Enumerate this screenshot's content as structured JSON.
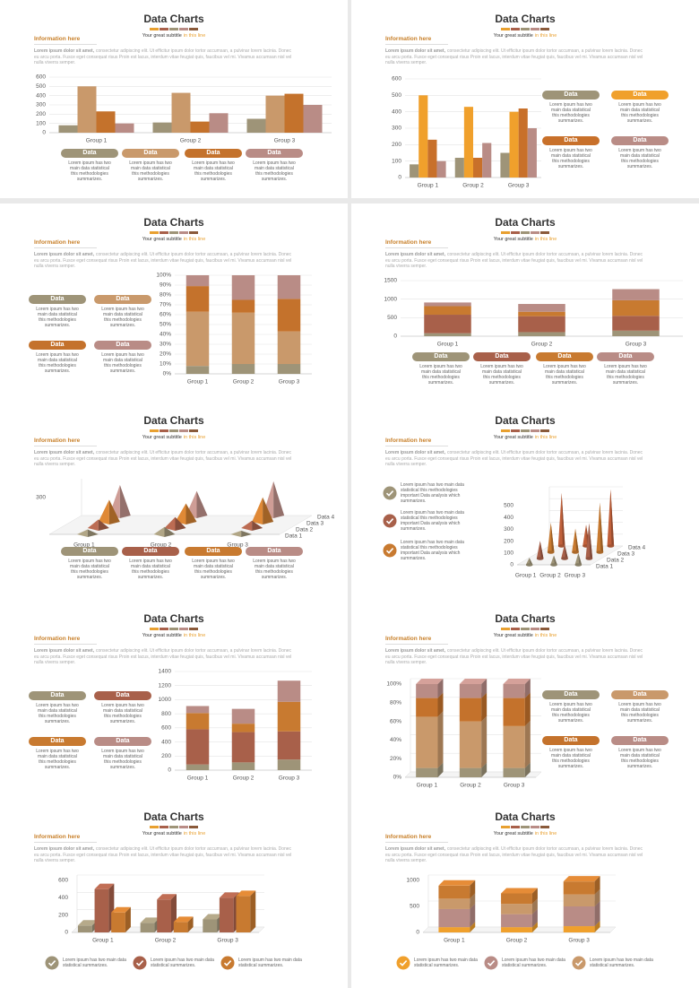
{
  "template": {
    "title": "Data Charts",
    "subtitle": "Your great subtitle",
    "subtitle_accent": "in this line",
    "heading": "Information here",
    "lorem_lead": "Lorem ipsum dolor sit amet,",
    "lorem": "consectetur adipiscing elit. Ut efficitur ipsum dolor tortor accumsan, a pulvinar lorem lacinia. Donec eu arcu porta. Fusce eget consequat risus Proin est lacus, interdum vitae feugiat quis, faucibus vel mi. Vivamus accumsan nisl vel nulla viverra semper.",
    "card_label": "Data",
    "card_text": "Lorem ipsum has two main data statistical this methodologies summarizes.",
    "check_text": "Lorem ipsum has two main data statistical this methodologies important Data analysis which summarizes.",
    "check_text_short": "Lorem ipsum has two main data statistical summarizes."
  },
  "chart_data": [
    {
      "type": "bar",
      "categories": [
        "Group 1",
        "Group 2",
        "Group 3"
      ],
      "ylim": [
        0,
        600
      ],
      "yticks": [
        0,
        100,
        200,
        300,
        400,
        500,
        600
      ],
      "grid": true,
      "series": [
        {
          "color": "#9e9478",
          "values": [
            80,
            110,
            150
          ]
        },
        {
          "color": "#c9996b",
          "values": [
            500,
            430,
            400
          ]
        },
        {
          "color": "#c4722c",
          "values": [
            230,
            120,
            420
          ]
        },
        {
          "color": "#b98c86",
          "values": [
            100,
            210,
            300
          ]
        }
      ]
    },
    {
      "type": "bar",
      "categories": [
        "Group 1",
        "Group 2",
        "Group 3"
      ],
      "ylim": [
        0,
        600
      ],
      "yticks": [
        0,
        100,
        200,
        300,
        400,
        500,
        600
      ],
      "grid": true,
      "series": [
        {
          "color": "#9e9478",
          "values": [
            80,
            120,
            150
          ]
        },
        {
          "color": "#f0a02c",
          "values": [
            500,
            430,
            400
          ]
        },
        {
          "color": "#c8702a",
          "values": [
            230,
            120,
            420
          ]
        },
        {
          "color": "#b98c86",
          "values": [
            100,
            210,
            300
          ]
        }
      ]
    },
    {
      "type": "stacked_bar",
      "categories": [
        "Group 1",
        "Group 2",
        "Group 3"
      ],
      "ylim": [
        0,
        100
      ],
      "yticks": [
        {
          "value": 0,
          "label": "0%"
        },
        {
          "value": 10,
          "label": "10%"
        },
        {
          "value": 20,
          "label": "20%"
        },
        {
          "value": 30,
          "label": "30%"
        },
        {
          "value": 40,
          "label": "40%"
        },
        {
          "value": 50,
          "label": "50%"
        },
        {
          "value": 60,
          "label": "60%"
        },
        {
          "value": 70,
          "label": "70%"
        },
        {
          "value": 80,
          "label": "80%"
        },
        {
          "value": 90,
          "label": "90%"
        },
        {
          "value": 100,
          "label": "100%"
        }
      ],
      "grid": true,
      "series": [
        {
          "color": "#9e9478",
          "values": [
            8,
            10,
            10
          ]
        },
        {
          "color": "#c9996b",
          "values": [
            55,
            52,
            33
          ]
        },
        {
          "color": "#c4722c",
          "values": [
            26,
            13,
            33
          ]
        },
        {
          "color": "#b98c86",
          "values": [
            11,
            25,
            24
          ]
        }
      ]
    },
    {
      "type": "stacked_bar",
      "categories": [
        "Group 1",
        "Group 2",
        "Group 3"
      ],
      "ylim": [
        0,
        1500
      ],
      "yticks": [
        0,
        500,
        1000,
        1500
      ],
      "grid": true,
      "series": [
        {
          "color": "#9e9478",
          "values": [
            80,
            110,
            150
          ]
        },
        {
          "color": "#a8604a",
          "values": [
            500,
            430,
            400
          ]
        },
        {
          "color": "#c87a30",
          "values": [
            230,
            120,
            420
          ]
        },
        {
          "color": "#b98c86",
          "values": [
            100,
            210,
            300
          ]
        }
      ]
    },
    {
      "type": "pyramid",
      "categories": [
        "Group 1",
        "Group 2",
        "Group 3"
      ],
      "ylim": [
        0,
        300
      ],
      "yticks": [
        300
      ],
      "grid": false,
      "series": [
        {
          "name": "Data 1",
          "color": "#9e9478",
          "values": [
            40,
            60,
            30
          ]
        },
        {
          "name": "Data 2",
          "color": "#a8604a",
          "values": [
            70,
            90,
            60
          ]
        },
        {
          "name": "Data 3",
          "color": "#c87a30",
          "values": [
            180,
            150,
            200
          ]
        },
        {
          "name": "Data 4",
          "color": "#b98c86",
          "values": [
            250,
            200,
            280
          ]
        }
      ]
    },
    {
      "type": "cone",
      "categories": [
        "Group 1",
        "Group 2",
        "Group 3"
      ],
      "ylim": [
        0,
        500
      ],
      "yticks": [
        0,
        100,
        200,
        300,
        400,
        500
      ],
      "grid": true,
      "series": [
        {
          "name": "Data 1",
          "color": "#9e9478",
          "values": [
            60,
            80,
            100
          ]
        },
        {
          "name": "Data 2",
          "color": "#a8604a",
          "values": [
            150,
            120,
            300
          ]
        },
        {
          "name": "Data 3",
          "color": "#c87a30",
          "values": [
            250,
            200,
            420
          ]
        },
        {
          "name": "Data 4",
          "color": "#c0603a",
          "values": [
            450,
            180,
            480
          ]
        }
      ]
    },
    {
      "type": "stacked_bar",
      "categories": [
        "Group 1",
        "Group 2",
        "Group 3"
      ],
      "ylim": [
        0,
        1400
      ],
      "yticks": [
        0,
        200,
        400,
        600,
        800,
        1000,
        1200,
        1400
      ],
      "grid": true,
      "series": [
        {
          "color": "#9e9478",
          "values": [
            80,
            110,
            150
          ]
        },
        {
          "color": "#a8604a",
          "values": [
            500,
            430,
            400
          ]
        },
        {
          "color": "#c87a30",
          "values": [
            230,
            120,
            420
          ]
        },
        {
          "color": "#b98c86",
          "values": [
            100,
            210,
            300
          ]
        }
      ]
    },
    {
      "type": "stacked_bar",
      "three_d": true,
      "categories": [
        "Group 1",
        "Group 2",
        "Group 3"
      ],
      "ylim": [
        0,
        100
      ],
      "yticks": [
        {
          "value": 0,
          "label": "0%"
        },
        {
          "value": 20,
          "label": "20%"
        },
        {
          "value": 40,
          "label": "40%"
        },
        {
          "value": 60,
          "label": "60%"
        },
        {
          "value": 80,
          "label": "80%"
        },
        {
          "value": 100,
          "label": "100%"
        }
      ],
      "grid": true,
      "series": [
        {
          "color": "#9e9478",
          "values": [
            10,
            10,
            10
          ]
        },
        {
          "color": "#c9996b",
          "values": [
            55,
            50,
            45
          ]
        },
        {
          "color": "#c4722c",
          "values": [
            20,
            25,
            30
          ]
        },
        {
          "color": "#b98c86",
          "values": [
            15,
            15,
            15
          ]
        }
      ]
    },
    {
      "type": "bar",
      "three_d": true,
      "categories": [
        "Group 1",
        "Group 2",
        "Group 3"
      ],
      "ylim": [
        0,
        600
      ],
      "yticks": [
        0,
        200,
        400,
        600
      ],
      "grid": true,
      "series": [
        {
          "color": "#9e9478",
          "values": [
            80,
            110,
            150
          ]
        },
        {
          "color": "#a8604a",
          "values": [
            500,
            380,
            400
          ]
        },
        {
          "color": "#c87a30",
          "values": [
            230,
            120,
            420
          ]
        }
      ]
    },
    {
      "type": "stacked_bar",
      "three_d": true,
      "categories": [
        "Group 1",
        "Group 2",
        "Group 3"
      ],
      "ylim": [
        0,
        1000
      ],
      "yticks": [
        0,
        500,
        1000
      ],
      "grid": true,
      "series": [
        {
          "color": "#f0a02c",
          "values": [
            100,
            100,
            120
          ]
        },
        {
          "color": "#b98c86",
          "values": [
            350,
            250,
            380
          ]
        },
        {
          "color": "#c9996b",
          "values": [
            200,
            200,
            230
          ]
        },
        {
          "color": "#c87a30",
          "values": [
            250,
            200,
            250
          ]
        }
      ]
    }
  ]
}
